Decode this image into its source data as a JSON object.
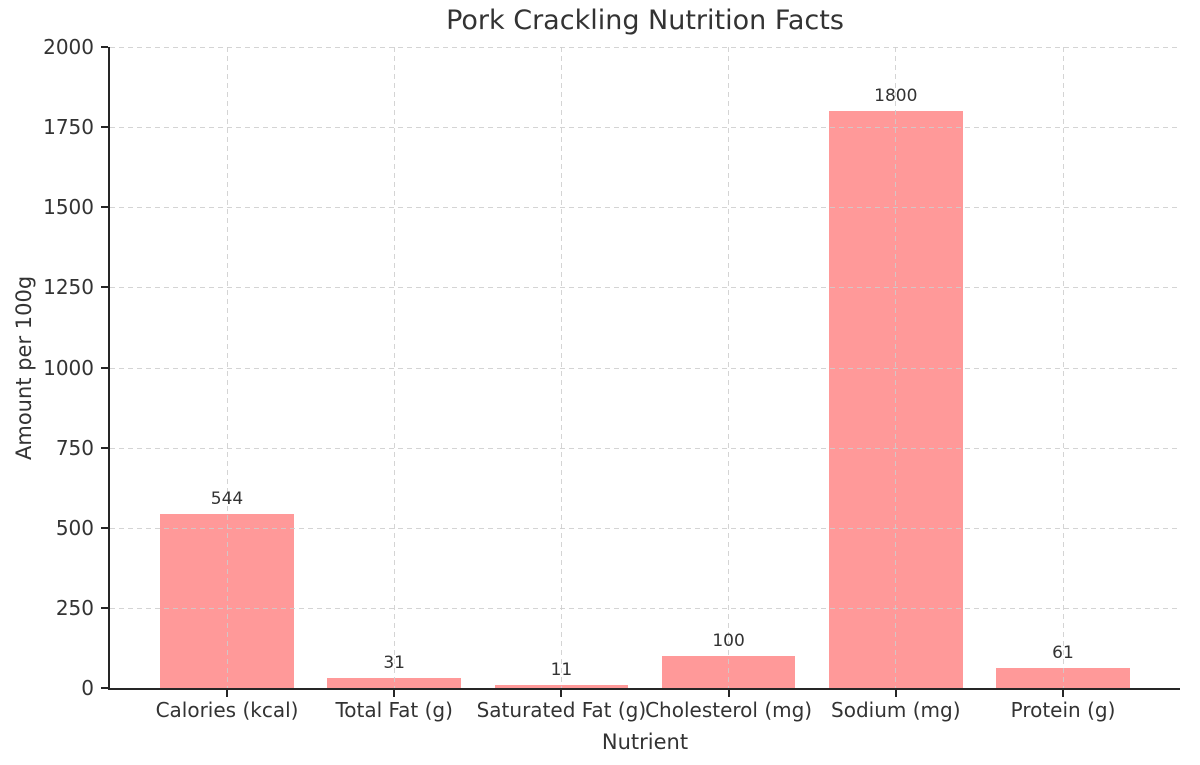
{
  "chart_data": {
    "type": "bar",
    "title": "Pork Crackling Nutrition Facts",
    "xlabel": "Nutrient",
    "ylabel": "Amount per 100g",
    "categories": [
      "Calories (kcal)",
      "Total Fat (g)",
      "Saturated Fat (g)",
      "Cholesterol (mg)",
      "Sodium (mg)",
      "Protein (g)"
    ],
    "values": [
      544,
      31,
      11,
      100,
      1800,
      61
    ],
    "bar_value_labels": [
      "544",
      "31",
      "11",
      "100",
      "1800",
      "61"
    ],
    "ylim": [
      0,
      2000
    ],
    "yticks": [
      0,
      250,
      500,
      750,
      1000,
      1250,
      1500,
      1750,
      2000
    ],
    "grid": "on",
    "grid_style": "dashed",
    "legend": "none",
    "colors": {
      "bar_fill": "#FF9999",
      "grid_line": "#cdcdcd",
      "axis_spine": "#262626",
      "text": "#333333",
      "background": "#ffffff"
    }
  }
}
